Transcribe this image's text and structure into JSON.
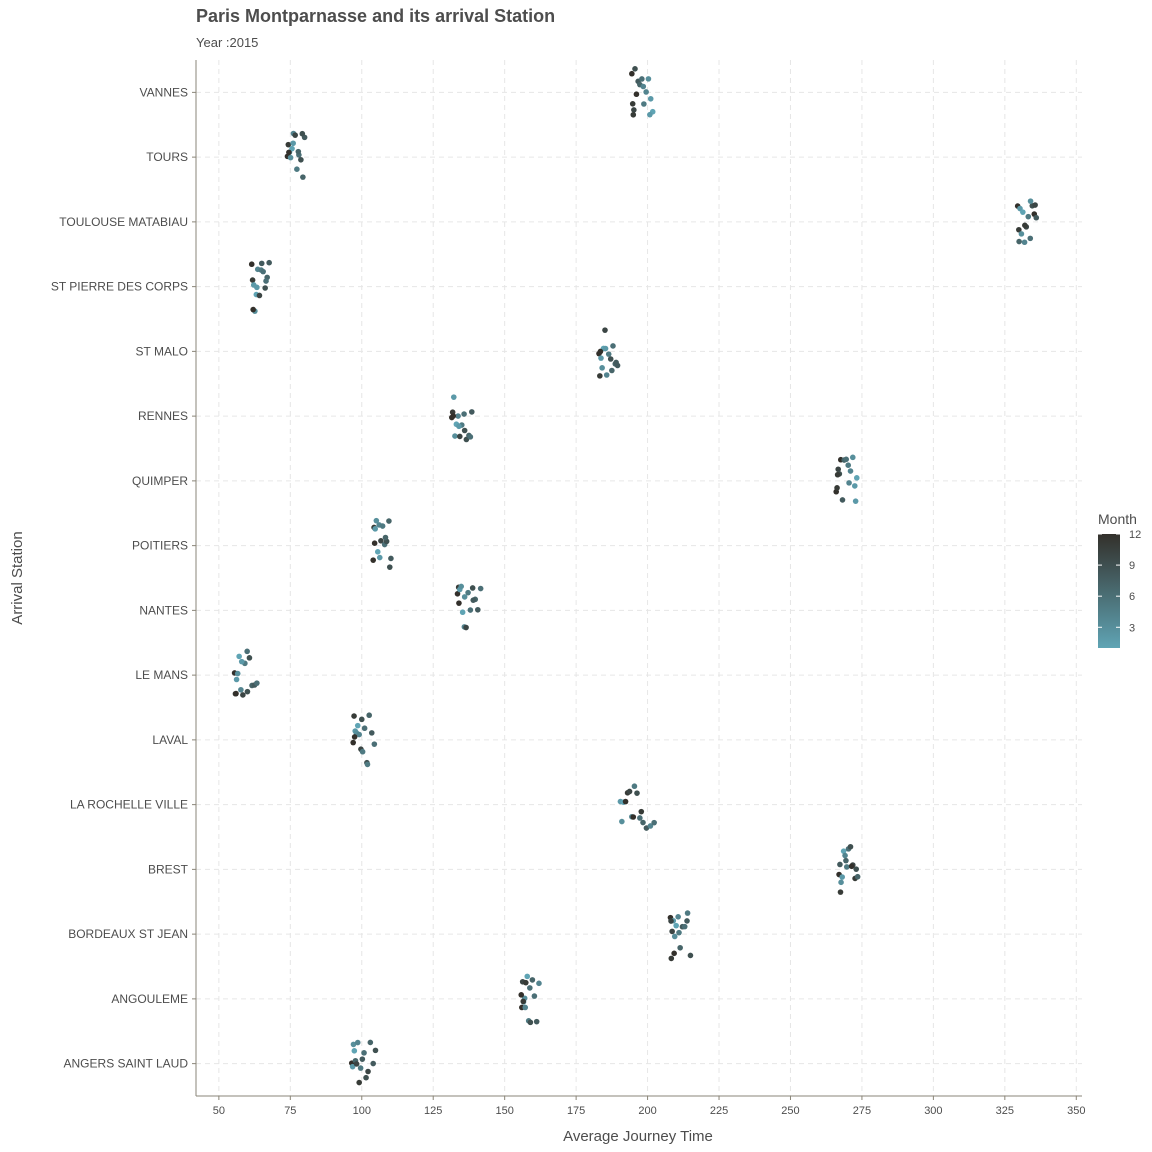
{
  "chart_data": {
    "type": "scatter",
    "title": "Paris Montparnasse and its arrival Station",
    "subtitle": "Year :2015",
    "xlabel": "Average Journey Time",
    "ylabel": "Arrival Station",
    "xlim": [
      42,
      352
    ],
    "xticks": [
      50,
      75,
      100,
      125,
      150,
      175,
      200,
      225,
      250,
      275,
      300,
      325,
      350
    ],
    "categories": [
      "ANGERS SAINT LAUD",
      "ANGOULEME",
      "BORDEAUX ST JEAN",
      "BREST",
      "LA ROCHELLE VILLE",
      "LAVAL",
      "LE MANS",
      "NANTES",
      "POITIERS",
      "QUIMPER",
      "RENNES",
      "ST MALO",
      "ST PIERRE DES CORPS",
      "TOULOUSE MATABIAU",
      "TOURS",
      "VANNES"
    ],
    "grid": true,
    "legend": {
      "title": "Month",
      "position": "right",
      "breaks": [
        3,
        6,
        9,
        12
      ],
      "range": [
        1,
        12
      ],
      "low_color": "#5fa4b4",
      "high_color": "#33302b"
    },
    "series": [
      {
        "category": "ANGERS SAINT LAUD",
        "points": [
          [
            96.5,
            12
          ],
          [
            96.8,
            2
          ],
          [
            97.1,
            3
          ],
          [
            97.4,
            1
          ],
          [
            97.8,
            7
          ],
          [
            98.2,
            10
          ],
          [
            98.6,
            4
          ],
          [
            99.1,
            11
          ],
          [
            99.6,
            5
          ],
          [
            100.2,
            8
          ],
          [
            100.8,
            6
          ],
          [
            101.5,
            9
          ],
          [
            102.2,
            10
          ],
          [
            103.0,
            7
          ],
          [
            104.0,
            8
          ],
          [
            104.8,
            9
          ]
        ]
      },
      {
        "category": "ANGOULEME",
        "points": [
          [
            156.0,
            12
          ],
          [
            156.3,
            10
          ],
          [
            156.6,
            2
          ],
          [
            157.0,
            3
          ],
          [
            157.4,
            11
          ],
          [
            157.9,
            1
          ],
          [
            158.4,
            5
          ],
          [
            159.0,
            9
          ],
          [
            159.7,
            7
          ],
          [
            160.4,
            6
          ],
          [
            161.2,
            8
          ],
          [
            162.0,
            4
          ],
          [
            155.8,
            12
          ],
          [
            156.5,
            11
          ],
          [
            157.2,
            4
          ],
          [
            158.8,
            6
          ]
        ]
      },
      {
        "category": "BORDEAUX ST JEAN",
        "points": [
          [
            208.0,
            12
          ],
          [
            208.3,
            11
          ],
          [
            208.6,
            10
          ],
          [
            209.0,
            2
          ],
          [
            209.5,
            3
          ],
          [
            210.0,
            1
          ],
          [
            210.7,
            4
          ],
          [
            211.4,
            7
          ],
          [
            212.2,
            8
          ],
          [
            213.0,
            6
          ],
          [
            214.0,
            5
          ],
          [
            215.0,
            9
          ],
          [
            208.2,
            10
          ],
          [
            209.3,
            12
          ],
          [
            211.0,
            5
          ],
          [
            213.8,
            8
          ]
        ]
      },
      {
        "category": "BREST",
        "points": [
          [
            267.0,
            12
          ],
          [
            267.3,
            8
          ],
          [
            267.7,
            3
          ],
          [
            268.1,
            2
          ],
          [
            268.6,
            1
          ],
          [
            269.1,
            4
          ],
          [
            269.7,
            5
          ],
          [
            270.3,
            6
          ],
          [
            271.0,
            9
          ],
          [
            271.8,
            10
          ],
          [
            272.6,
            11
          ],
          [
            273.5,
            7
          ],
          [
            267.5,
            11
          ],
          [
            269.4,
            7
          ],
          [
            271.4,
            12
          ],
          [
            273.0,
            9
          ]
        ]
      },
      {
        "category": "LA ROCHELLE VILLE",
        "points": [
          [
            190.5,
            2
          ],
          [
            191.0,
            3
          ],
          [
            191.6,
            1
          ],
          [
            192.3,
            12
          ],
          [
            193.0,
            11
          ],
          [
            193.7,
            10
          ],
          [
            194.5,
            4
          ],
          [
            195.4,
            5
          ],
          [
            196.3,
            9
          ],
          [
            197.3,
            6
          ],
          [
            198.4,
            7
          ],
          [
            199.6,
            8
          ],
          [
            201.0,
            4
          ],
          [
            202.3,
            6
          ],
          [
            195.0,
            12
          ],
          [
            197.8,
            11
          ]
        ]
      },
      {
        "category": "LAVAL",
        "points": [
          [
            97.0,
            12
          ],
          [
            97.3,
            11
          ],
          [
            97.7,
            2
          ],
          [
            98.1,
            3
          ],
          [
            98.6,
            1
          ],
          [
            99.1,
            4
          ],
          [
            99.7,
            10
          ],
          [
            100.3,
            5
          ],
          [
            101.0,
            6
          ],
          [
            101.8,
            9
          ],
          [
            102.6,
            7
          ],
          [
            103.5,
            8
          ],
          [
            104.4,
            6
          ],
          [
            97.5,
            12
          ],
          [
            100.0,
            9
          ],
          [
            102.0,
            5
          ]
        ]
      },
      {
        "category": "LE MANS",
        "points": [
          [
            55.5,
            12
          ],
          [
            55.8,
            11
          ],
          [
            56.2,
            2
          ],
          [
            56.6,
            3
          ],
          [
            57.1,
            1
          ],
          [
            57.7,
            4
          ],
          [
            58.4,
            10
          ],
          [
            59.1,
            5
          ],
          [
            59.9,
            6
          ],
          [
            60.7,
            9
          ],
          [
            61.6,
            7
          ],
          [
            62.5,
            8
          ],
          [
            63.3,
            6
          ],
          [
            56.0,
            12
          ],
          [
            58.0,
            2
          ],
          [
            60.0,
            9
          ]
        ]
      },
      {
        "category": "NANTES",
        "points": [
          [
            133.5,
            12
          ],
          [
            133.9,
            11
          ],
          [
            134.3,
            2
          ],
          [
            134.8,
            3
          ],
          [
            135.3,
            1
          ],
          [
            135.9,
            4
          ],
          [
            136.5,
            10
          ],
          [
            137.2,
            5
          ],
          [
            138.0,
            6
          ],
          [
            138.8,
            9
          ],
          [
            139.7,
            7
          ],
          [
            140.6,
            8
          ],
          [
            141.6,
            6
          ],
          [
            134.0,
            12
          ],
          [
            136.0,
            3
          ],
          [
            139.0,
            8
          ]
        ]
      },
      {
        "category": "POITIERS",
        "points": [
          [
            104.0,
            12
          ],
          [
            104.3,
            11
          ],
          [
            104.7,
            2
          ],
          [
            105.1,
            3
          ],
          [
            105.6,
            1
          ],
          [
            106.1,
            4
          ],
          [
            106.7,
            10
          ],
          [
            107.3,
            5
          ],
          [
            108.0,
            6
          ],
          [
            108.7,
            9
          ],
          [
            109.5,
            7
          ],
          [
            110.2,
            8
          ],
          [
            104.5,
            12
          ],
          [
            106.3,
            2
          ],
          [
            108.3,
            7
          ],
          [
            109.8,
            9
          ]
        ]
      },
      {
        "category": "QUIMPER",
        "points": [
          [
            266.0,
            12
          ],
          [
            266.3,
            11
          ],
          [
            266.7,
            10
          ],
          [
            267.1,
            9
          ],
          [
            267.6,
            12
          ],
          [
            268.2,
            8
          ],
          [
            268.8,
            7
          ],
          [
            269.5,
            6
          ],
          [
            270.2,
            5
          ],
          [
            271.0,
            4
          ],
          [
            271.8,
            3
          ],
          [
            272.5,
            2
          ],
          [
            273.2,
            1
          ],
          [
            266.5,
            11
          ],
          [
            270.5,
            4
          ],
          [
            272.8,
            2
          ]
        ]
      },
      {
        "category": "RENNES",
        "points": [
          [
            131.5,
            12
          ],
          [
            131.8,
            11
          ],
          [
            132.2,
            2
          ],
          [
            132.6,
            3
          ],
          [
            133.1,
            1
          ],
          [
            133.7,
            4
          ],
          [
            134.3,
            10
          ],
          [
            135.0,
            5
          ],
          [
            135.8,
            6
          ],
          [
            136.6,
            9
          ],
          [
            137.5,
            7
          ],
          [
            138.5,
            8
          ],
          [
            132.0,
            12
          ],
          [
            134.0,
            2
          ],
          [
            136.0,
            9
          ],
          [
            138.0,
            6
          ]
        ]
      },
      {
        "category": "ST MALO",
        "points": [
          [
            183.0,
            12
          ],
          [
            183.3,
            11
          ],
          [
            183.7,
            2
          ],
          [
            184.1,
            3
          ],
          [
            184.6,
            1
          ],
          [
            185.1,
            10
          ],
          [
            185.7,
            4
          ],
          [
            186.4,
            5
          ],
          [
            187.1,
            9
          ],
          [
            187.9,
            6
          ],
          [
            188.7,
            7
          ],
          [
            189.5,
            8
          ],
          [
            183.5,
            12
          ],
          [
            185.3,
            2
          ],
          [
            187.5,
            7
          ],
          [
            189.0,
            8
          ]
        ]
      },
      {
        "category": "ST PIERRE DES CORPS",
        "points": [
          [
            61.5,
            12
          ],
          [
            61.8,
            11
          ],
          [
            62.2,
            2
          ],
          [
            62.6,
            3
          ],
          [
            63.1,
            1
          ],
          [
            63.6,
            4
          ],
          [
            64.2,
            10
          ],
          [
            64.8,
            5
          ],
          [
            65.5,
            6
          ],
          [
            66.2,
            9
          ],
          [
            66.9,
            7
          ],
          [
            67.6,
            8
          ],
          [
            62.0,
            12
          ],
          [
            63.3,
            2
          ],
          [
            65.0,
            8
          ],
          [
            66.5,
            6
          ]
        ]
      },
      {
        "category": "TOULOUSE MATABIAU",
        "points": [
          [
            329.5,
            12
          ],
          [
            329.9,
            11
          ],
          [
            330.3,
            2
          ],
          [
            330.8,
            3
          ],
          [
            331.3,
            1
          ],
          [
            331.9,
            4
          ],
          [
            332.5,
            10
          ],
          [
            333.2,
            5
          ],
          [
            333.9,
            6
          ],
          [
            334.6,
            9
          ],
          [
            335.3,
            12
          ],
          [
            336.0,
            8
          ],
          [
            330.0,
            7
          ],
          [
            332.0,
            11
          ],
          [
            334.0,
            3
          ],
          [
            335.6,
            10
          ]
        ]
      },
      {
        "category": "TOURS",
        "points": [
          [
            74.0,
            12
          ],
          [
            74.3,
            11
          ],
          [
            74.7,
            2
          ],
          [
            75.1,
            3
          ],
          [
            75.6,
            1
          ],
          [
            76.1,
            4
          ],
          [
            76.7,
            10
          ],
          [
            77.3,
            5
          ],
          [
            78.0,
            6
          ],
          [
            78.7,
            9
          ],
          [
            79.4,
            7
          ],
          [
            80.0,
            8
          ],
          [
            74.5,
            12
          ],
          [
            76.0,
            2
          ],
          [
            77.8,
            7
          ],
          [
            79.2,
            9
          ]
        ]
      },
      {
        "category": "VANNES",
        "points": [
          [
            194.5,
            12
          ],
          [
            194.8,
            11
          ],
          [
            195.2,
            10
          ],
          [
            195.6,
            9
          ],
          [
            196.1,
            12
          ],
          [
            196.7,
            8
          ],
          [
            197.3,
            7
          ],
          [
            198.0,
            6
          ],
          [
            198.7,
            5
          ],
          [
            199.5,
            4
          ],
          [
            200.3,
            3
          ],
          [
            201.1,
            2
          ],
          [
            201.8,
            1
          ],
          [
            195.0,
            11
          ],
          [
            198.5,
            4
          ],
          [
            200.8,
            2
          ]
        ]
      }
    ]
  }
}
